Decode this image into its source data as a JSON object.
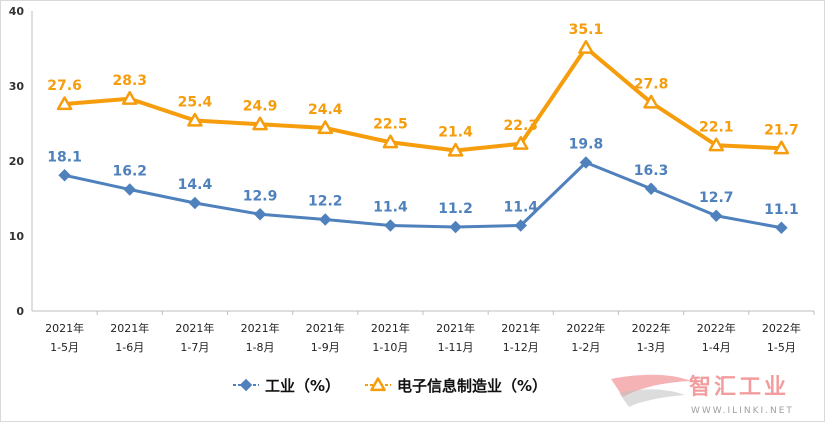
{
  "chart_data": {
    "type": "line",
    "categories": [
      [
        "2021年",
        "1-5月"
      ],
      [
        "2021年",
        "1-6月"
      ],
      [
        "2021年",
        "1-7月"
      ],
      [
        "2021年",
        "1-8月"
      ],
      [
        "2021年",
        "1-9月"
      ],
      [
        "2021年",
        "1-10月"
      ],
      [
        "2021年",
        "1-11月"
      ],
      [
        "2021年",
        "1-12月"
      ],
      [
        "2022年",
        "1-2月"
      ],
      [
        "2022年",
        "1-3月"
      ],
      [
        "2022年",
        "1-4月"
      ],
      [
        "2022年",
        "1-5月"
      ]
    ],
    "series": [
      {
        "name": "工业（%）",
        "color": "#4f81bd",
        "marker": "diamond",
        "values": [
          18.1,
          16.2,
          14.4,
          12.9,
          12.2,
          11.4,
          11.2,
          11.4,
          19.8,
          16.3,
          12.7,
          11.1
        ],
        "labels": [
          "18.1",
          "16.2",
          "14.4",
          "12.9",
          "12.2",
          "11.4",
          "11.2",
          "11.4",
          "19.8",
          "16.3",
          "12.7",
          "11.1"
        ]
      },
      {
        "name": "电子信息制造业（%）",
        "color": "#f59d0c",
        "marker": "triangle",
        "values": [
          27.6,
          28.3,
          25.4,
          24.9,
          24.4,
          22.5,
          21.4,
          22.3,
          35.1,
          27.8,
          22.1,
          21.7
        ],
        "labels": [
          "27.6",
          "28.3",
          "25.4",
          "24.9",
          "24.4",
          "22.5",
          "21.4",
          "22.3",
          "35.1",
          "27.8",
          "22.1",
          "21.7"
        ]
      }
    ],
    "ylim": [
      0,
      40
    ],
    "yticks": [
      "0",
      "10",
      "20",
      "30",
      "40"
    ],
    "grid": false,
    "legend_position": "bottom-center"
  },
  "watermark": {
    "text": "智汇工业",
    "subtext": "WWW.ILINKI.NET"
  }
}
